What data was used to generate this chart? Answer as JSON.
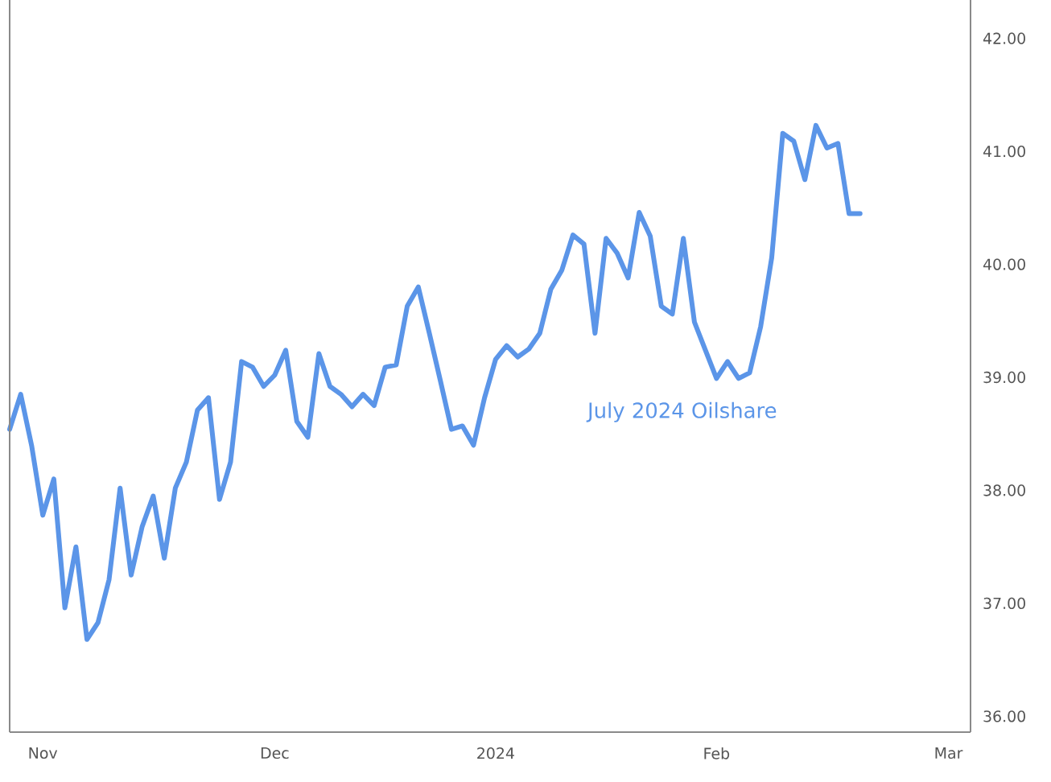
{
  "chart_data": {
    "type": "line",
    "categories": [
      null,
      null,
      null,
      "Nov",
      null,
      null,
      null,
      null,
      null,
      null,
      null,
      null,
      null,
      null,
      null,
      null,
      null,
      null,
      null,
      null,
      null,
      null,
      null,
      null,
      "Dec",
      null,
      null,
      null,
      null,
      null,
      null,
      null,
      null,
      null,
      null,
      null,
      null,
      null,
      null,
      null,
      null,
      null,
      null,
      null,
      "2024",
      null,
      null,
      null,
      null,
      null,
      null,
      null,
      null,
      null,
      null,
      null,
      null,
      null,
      null,
      null,
      null,
      null,
      null,
      null,
      "Feb",
      null,
      null,
      null,
      null,
      null,
      null,
      null,
      null,
      null,
      null,
      null,
      null,
      null,
      null,
      null,
      null,
      null,
      null,
      null,
      null,
      "Mar",
      null,
      null
    ],
    "series": [
      {
        "name": "July 2024 Oilshare",
        "color": "#5b95e8",
        "values": [
          38.54,
          38.85,
          38.39,
          37.78,
          38.1,
          36.96,
          37.5,
          36.68,
          36.83,
          37.21,
          38.02,
          37.25,
          37.68,
          37.95,
          37.4,
          38.02,
          38.25,
          38.71,
          38.82,
          37.92,
          38.25,
          39.14,
          39.09,
          38.92,
          39.02,
          39.24,
          38.61,
          38.47,
          39.21,
          38.92,
          38.85,
          38.74,
          38.85,
          38.75,
          39.09,
          39.11,
          39.63,
          39.8,
          39.39,
          38.97,
          38.54,
          38.57,
          38.4,
          38.82,
          39.16,
          39.28,
          39.18,
          39.25,
          39.39,
          39.78,
          39.95,
          40.26,
          40.18,
          39.39,
          40.23,
          40.1,
          39.88,
          40.46,
          40.25,
          39.63,
          39.56,
          40.23,
          39.49,
          39.24,
          38.99,
          39.14,
          38.99,
          39.04,
          39.45,
          40.06,
          41.16,
          41.09,
          40.75,
          41.23,
          41.03,
          41.07,
          40.45,
          40.45,
          null,
          null,
          null,
          null,
          null,
          null,
          null,
          null,
          null,
          null
        ]
      }
    ],
    "ylim": [
      35.86,
      42.34
    ],
    "yticks": [
      {
        "value": 36,
        "label": "36.00"
      },
      {
        "value": 37,
        "label": "37.00"
      },
      {
        "value": 38,
        "label": "38.00"
      },
      {
        "value": 39,
        "label": "39.00"
      },
      {
        "value": 40,
        "label": "40.00"
      },
      {
        "value": 41,
        "label": "41.00"
      },
      {
        "value": 42,
        "label": "42.00"
      }
    ],
    "marker": "none",
    "line_style": "solid",
    "grid": false
  }
}
